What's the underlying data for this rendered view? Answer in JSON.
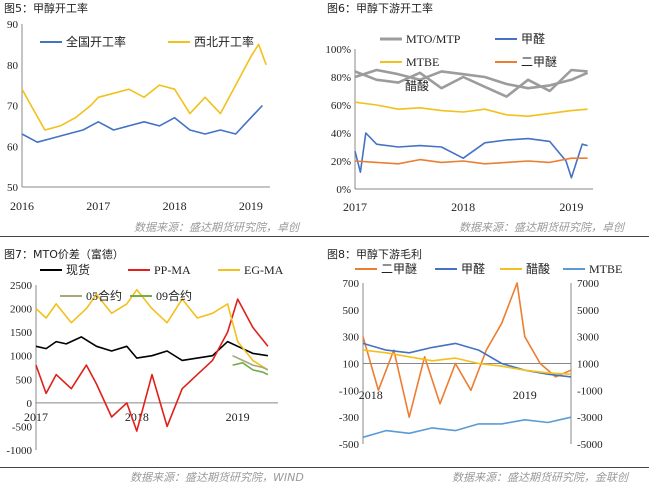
{
  "colors": {
    "blue": "#4472C4",
    "gold": "#F2C11C",
    "gray": "#9C9C9C",
    "orange": "#ED7D31",
    "red": "#E0201B",
    "black": "#000000",
    "green": "#70AD47",
    "lightblue": "#5B9BD5",
    "olive": "#A9A57C"
  },
  "source_top": "数据来源：盛达期货研究院，卓创",
  "source_bottom_left": "数据来源：盛达期货研究院，WIND",
  "source_bottom_right": "数据来源：盛达期货研究院，金联创",
  "chart_data": [
    {
      "id": "p5",
      "type": "line",
      "title": "图5：甲醇开工率",
      "x_ticks": [
        "2016",
        "2017",
        "2018",
        "2019"
      ],
      "xlim": [
        2016.0,
        2019.25
      ],
      "ylim": [
        50,
        90
      ],
      "y_ticks": [
        "50",
        "60",
        "70",
        "80",
        "90"
      ],
      "series": [
        {
          "name": "全国开工率",
          "color": "blue",
          "x": [
            2016.0,
            2016.2,
            2016.4,
            2016.6,
            2016.8,
            2017.0,
            2017.2,
            2017.4,
            2017.6,
            2017.8,
            2018.0,
            2018.2,
            2018.4,
            2018.6,
            2018.8,
            2019.0,
            2019.15
          ],
          "y": [
            63,
            61,
            62,
            63,
            64,
            66,
            64,
            65,
            66,
            65,
            67,
            64,
            63,
            64,
            63,
            67,
            70
          ]
        },
        {
          "name": "西北开工率",
          "color": "gold",
          "x": [
            2016.0,
            2016.15,
            2016.3,
            2016.5,
            2016.7,
            2016.9,
            2017.0,
            2017.2,
            2017.4,
            2017.6,
            2017.8,
            2018.0,
            2018.2,
            2018.4,
            2018.6,
            2018.8,
            2019.0,
            2019.1,
            2019.2
          ],
          "y": [
            74,
            69,
            64,
            65,
            67,
            70,
            72,
            73,
            74,
            72,
            75,
            74,
            68,
            72,
            68,
            75,
            82,
            85,
            80
          ]
        }
      ]
    },
    {
      "id": "p6",
      "type": "line",
      "title": "图6：甲醇下游开工率",
      "x_ticks": [
        "2017",
        "2018",
        "2019"
      ],
      "xlim": [
        2017.0,
        2019.2
      ],
      "ylim": [
        0,
        100
      ],
      "y_ticks": [
        "0%",
        "20%",
        "40%",
        "60%",
        "80%",
        "100%"
      ],
      "series": [
        {
          "name": "MTO/MTP",
          "color": "gray",
          "x": [
            2017.0,
            2017.2,
            2017.4,
            2017.6,
            2017.8,
            2018.0,
            2018.2,
            2018.4,
            2018.6,
            2018.8,
            2019.0,
            2019.15
          ],
          "y": [
            84,
            78,
            76,
            83,
            72,
            80,
            73,
            66,
            78,
            70,
            85,
            84
          ]
        },
        {
          "name": "甲醛",
          "color": "blue",
          "x": [
            2017.0,
            2017.05,
            2017.1,
            2017.2,
            2017.4,
            2017.6,
            2017.8,
            2018.0,
            2018.2,
            2018.4,
            2018.6,
            2018.8,
            2018.95,
            2019.0,
            2019.1,
            2019.15
          ],
          "y": [
            27,
            12,
            40,
            32,
            30,
            31,
            30,
            22,
            33,
            35,
            36,
            34,
            20,
            8,
            32,
            31
          ]
        },
        {
          "name": "MTBE",
          "color": "gold",
          "x": [
            2017.0,
            2017.2,
            2017.4,
            2017.6,
            2017.8,
            2018.0,
            2018.2,
            2018.4,
            2018.6,
            2018.8,
            2019.0,
            2019.15
          ],
          "y": [
            62,
            60,
            57,
            58,
            56,
            55,
            57,
            53,
            52,
            54,
            56,
            57
          ]
        },
        {
          "name": "二甲醚",
          "color": "orange",
          "x": [
            2017.0,
            2017.2,
            2017.4,
            2017.6,
            2017.8,
            2018.0,
            2018.2,
            2018.4,
            2018.6,
            2018.8,
            2019.0,
            2019.15
          ],
          "y": [
            20,
            19,
            18,
            21,
            19,
            20,
            18,
            19,
            20,
            19,
            22,
            22
          ]
        },
        {
          "name": "醋酸",
          "color": "gray",
          "x": [
            2017.0,
            2017.2,
            2017.4,
            2017.6,
            2017.8,
            2018.0,
            2018.2,
            2018.4,
            2018.6,
            2018.8,
            2019.0,
            2019.15
          ],
          "y": [
            80,
            85,
            82,
            78,
            84,
            82,
            80,
            75,
            72,
            74,
            78,
            83
          ]
        }
      ]
    },
    {
      "id": "p7",
      "type": "line",
      "title": "图7：MTO价差（富德）",
      "x_ticks": [
        "2017",
        "2018",
        "2019"
      ],
      "xlim": [
        2017.0,
        2019.4
      ],
      "ylim": [
        -1000,
        2500
      ],
      "y_ticks": [
        "-1000",
        "-500",
        "0",
        "500",
        "1000",
        "1500",
        "2000",
        "2500"
      ],
      "series": [
        {
          "name": "现货",
          "color": "black",
          "x": [
            2017.0,
            2017.1,
            2017.2,
            2017.3,
            2017.45,
            2017.6,
            2017.75,
            2017.9,
            2018.0,
            2018.15,
            2018.3,
            2018.45,
            2018.6,
            2018.75,
            2018.9,
            2019.0,
            2019.15,
            2019.3
          ],
          "y": [
            1200,
            1150,
            1300,
            1250,
            1400,
            1200,
            1100,
            1200,
            950,
            1000,
            1100,
            900,
            950,
            1000,
            1300,
            1200,
            1050,
            1000
          ]
        },
        {
          "name": "PP-MA",
          "color": "red",
          "x": [
            2017.0,
            2017.1,
            2017.2,
            2017.35,
            2017.5,
            2017.6,
            2017.75,
            2017.9,
            2018.0,
            2018.15,
            2018.3,
            2018.45,
            2018.6,
            2018.75,
            2018.9,
            2019.0,
            2019.15,
            2019.3
          ],
          "y": [
            800,
            200,
            600,
            300,
            800,
            400,
            -300,
            0,
            -600,
            600,
            -500,
            300,
            600,
            900,
            1500,
            2200,
            1600,
            1200
          ]
        },
        {
          "name": "EG-MA",
          "color": "gold",
          "x": [
            2017.0,
            2017.1,
            2017.2,
            2017.35,
            2017.5,
            2017.6,
            2017.75,
            2017.9,
            2018.0,
            2018.15,
            2018.3,
            2018.45,
            2018.6,
            2018.75,
            2018.9,
            2019.0,
            2019.15,
            2019.3
          ],
          "y": [
            2000,
            1800,
            2100,
            1700,
            2000,
            2300,
            1900,
            2100,
            2400,
            2000,
            1700,
            2200,
            1800,
            1900,
            2100,
            1300,
            900,
            700
          ]
        },
        {
          "name": "05合约",
          "color": "olive",
          "x": [
            2018.95,
            2019.05,
            2019.15,
            2019.25,
            2019.3
          ],
          "y": [
            1000,
            900,
            800,
            750,
            700
          ]
        },
        {
          "name": "09合约",
          "color": "green",
          "x": [
            2018.95,
            2019.05,
            2019.15,
            2019.25,
            2019.3
          ],
          "y": [
            800,
            850,
            700,
            650,
            600
          ]
        }
      ]
    },
    {
      "id": "p8",
      "type": "line",
      "title": "图8：甲醇下游毛利",
      "x_ticks": [
        "2018",
        "2019"
      ],
      "xlim": [
        2017.95,
        2019.3
      ],
      "ylim": [
        -500,
        700
      ],
      "y_ticks": [
        "-500",
        "-300",
        "-100",
        "100",
        "300",
        "500",
        "700"
      ],
      "y2lim": [
        -5000,
        7000
      ],
      "y2_ticks": [
        "-5000",
        "-3000",
        "-1000",
        "1000",
        "3000",
        "5000",
        "7000"
      ],
      "series": [
        {
          "name": "二甲醚",
          "color": "orange",
          "axis": "left",
          "x": [
            2017.95,
            2018.05,
            2018.15,
            2018.25,
            2018.35,
            2018.45,
            2018.55,
            2018.65,
            2018.75,
            2018.85,
            2018.95,
            2019.0,
            2019.1,
            2019.2,
            2019.3
          ],
          "y": [
            300,
            -100,
            200,
            -300,
            150,
            -200,
            100,
            -100,
            200,
            400,
            700,
            300,
            100,
            0,
            50
          ]
        },
        {
          "name": "甲醛",
          "color": "blue",
          "axis": "left",
          "x": [
            2017.95,
            2018.1,
            2018.25,
            2018.4,
            2018.55,
            2018.7,
            2018.85,
            2019.0,
            2019.15,
            2019.3
          ],
          "y": [
            250,
            200,
            180,
            220,
            250,
            200,
            100,
            50,
            20,
            0
          ]
        },
        {
          "name": "醋酸",
          "color": "gold",
          "axis": "right",
          "x": [
            2017.95,
            2018.1,
            2018.25,
            2018.4,
            2018.55,
            2018.7,
            2018.85,
            2019.0,
            2019.15,
            2019.3
          ],
          "y": [
            2000,
            1800,
            1500,
            1200,
            1400,
            1000,
            800,
            500,
            300,
            200
          ]
        },
        {
          "name": "MTBE",
          "color": "lightblue",
          "axis": "right",
          "x": [
            2017.95,
            2018.1,
            2018.25,
            2018.4,
            2018.55,
            2018.7,
            2018.85,
            2019.0,
            2019.15,
            2019.3
          ],
          "y": [
            -4500,
            -4000,
            -4200,
            -3800,
            -4000,
            -3500,
            -3500,
            -3200,
            -3400,
            -3000
          ]
        }
      ]
    }
  ]
}
